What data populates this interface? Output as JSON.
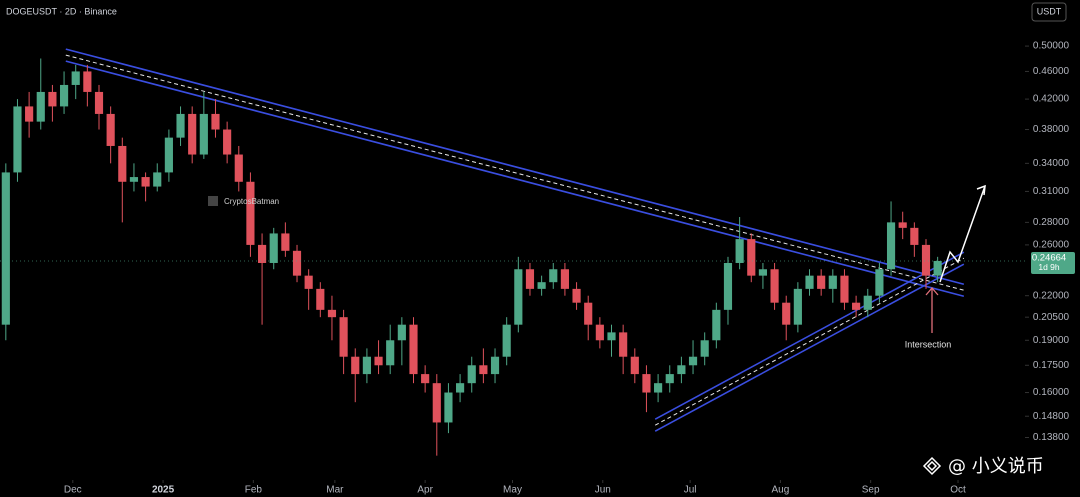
{
  "header": {
    "symbol": "DOGEUSDT · 2D · Binance",
    "currency": "USDT"
  },
  "watermark": "@ 小义说币",
  "chart_data": {
    "type": "candlestick",
    "y_scale": "log",
    "grid": false,
    "colors": {
      "up": "#4fa888",
      "down": "#e0525c"
    },
    "x": [
      -7,
      -3,
      1,
      5,
      9,
      13,
      17,
      21,
      25,
      29,
      33,
      37,
      41,
      45,
      49,
      53,
      57,
      61,
      65,
      69,
      73,
      77,
      81,
      85,
      89,
      93,
      97,
      101,
      105,
      109,
      113,
      117,
      121,
      125,
      129,
      133,
      137,
      141,
      145,
      149,
      153,
      157,
      161,
      165,
      169,
      173,
      177,
      181,
      185,
      189,
      193,
      197,
      201,
      205,
      209,
      213,
      217,
      221,
      225,
      229,
      233,
      237,
      241,
      245,
      249,
      253,
      257,
      261,
      265,
      269,
      273,
      277,
      281,
      285,
      289,
      293,
      297,
      301,
      305,
      309,
      313
    ],
    "open": [
      0.2,
      0.33,
      0.41,
      0.39,
      0.43,
      0.41,
      0.44,
      0.46,
      0.43,
      0.4,
      0.36,
      0.32,
      0.325,
      0.315,
      0.33,
      0.37,
      0.4,
      0.35,
      0.4,
      0.38,
      0.35,
      0.32,
      0.26,
      0.245,
      0.27,
      0.255,
      0.235,
      0.225,
      0.21,
      0.205,
      0.18,
      0.17,
      0.18,
      0.175,
      0.19,
      0.2,
      0.17,
      0.165,
      0.145,
      0.16,
      0.165,
      0.175,
      0.17,
      0.18,
      0.2,
      0.24,
      0.225,
      0.23,
      0.24,
      0.225,
      0.215,
      0.2,
      0.19,
      0.195,
      0.18,
      0.17,
      0.16,
      0.165,
      0.17,
      0.175,
      0.18,
      0.19,
      0.21,
      0.245,
      0.265,
      0.235,
      0.24,
      0.215,
      0.2,
      0.225,
      0.235,
      0.225,
      0.235,
      0.215,
      0.21,
      0.22,
      0.24,
      0.28,
      0.275,
      0.26,
      0.235
    ],
    "high": [
      0.34,
      0.42,
      0.43,
      0.48,
      0.44,
      0.46,
      0.47,
      0.47,
      0.44,
      0.41,
      0.37,
      0.34,
      0.33,
      0.34,
      0.38,
      0.41,
      0.41,
      0.43,
      0.42,
      0.39,
      0.36,
      0.33,
      0.27,
      0.275,
      0.28,
      0.26,
      0.24,
      0.23,
      0.22,
      0.21,
      0.185,
      0.185,
      0.19,
      0.2,
      0.205,
      0.205,
      0.175,
      0.17,
      0.165,
      0.17,
      0.18,
      0.185,
      0.185,
      0.205,
      0.25,
      0.245,
      0.235,
      0.245,
      0.245,
      0.23,
      0.22,
      0.205,
      0.2,
      0.2,
      0.185,
      0.175,
      0.17,
      0.175,
      0.18,
      0.19,
      0.195,
      0.215,
      0.25,
      0.285,
      0.27,
      0.245,
      0.245,
      0.22,
      0.23,
      0.24,
      0.24,
      0.24,
      0.24,
      0.22,
      0.225,
      0.245,
      0.3,
      0.29,
      0.28,
      0.265,
      0.25
    ],
    "low": [
      0.19,
      0.32,
      0.37,
      0.38,
      0.39,
      0.4,
      0.42,
      0.41,
      0.38,
      0.34,
      0.28,
      0.31,
      0.3,
      0.31,
      0.32,
      0.36,
      0.34,
      0.345,
      0.37,
      0.34,
      0.31,
      0.25,
      0.2,
      0.24,
      0.25,
      0.23,
      0.21,
      0.205,
      0.19,
      0.17,
      0.155,
      0.165,
      0.17,
      0.17,
      0.175,
      0.165,
      0.16,
      0.13,
      0.14,
      0.155,
      0.16,
      0.165,
      0.165,
      0.175,
      0.195,
      0.22,
      0.22,
      0.225,
      0.22,
      0.21,
      0.19,
      0.185,
      0.18,
      0.17,
      0.165,
      0.15,
      0.155,
      0.16,
      0.165,
      0.17,
      0.175,
      0.185,
      0.2,
      0.24,
      0.23,
      0.225,
      0.21,
      0.19,
      0.195,
      0.22,
      0.22,
      0.215,
      0.21,
      0.205,
      0.205,
      0.215,
      0.235,
      0.265,
      0.25,
      0.225,
      0.23
    ],
    "close": [
      0.33,
      0.41,
      0.39,
      0.43,
      0.41,
      0.44,
      0.46,
      0.43,
      0.4,
      0.36,
      0.32,
      0.325,
      0.315,
      0.33,
      0.37,
      0.4,
      0.35,
      0.4,
      0.38,
      0.35,
      0.32,
      0.26,
      0.245,
      0.27,
      0.255,
      0.235,
      0.225,
      0.21,
      0.205,
      0.18,
      0.17,
      0.18,
      0.175,
      0.19,
      0.2,
      0.17,
      0.165,
      0.145,
      0.16,
      0.165,
      0.175,
      0.17,
      0.18,
      0.2,
      0.24,
      0.225,
      0.23,
      0.24,
      0.225,
      0.215,
      0.2,
      0.19,
      0.195,
      0.18,
      0.17,
      0.16,
      0.165,
      0.17,
      0.175,
      0.18,
      0.19,
      0.21,
      0.245,
      0.265,
      0.235,
      0.24,
      0.215,
      0.2,
      0.225,
      0.235,
      0.225,
      0.235,
      0.215,
      0.21,
      0.22,
      0.24,
      0.28,
      0.275,
      0.26,
      0.235,
      0.24664
    ],
    "last_price_countdown": "1d 9h",
    "xlim": [
      -9,
      343
    ],
    "xticks": [
      {
        "value": 16,
        "label": "Dec"
      },
      {
        "value": 47,
        "label": "2025"
      },
      {
        "value": 78,
        "label": "Feb"
      },
      {
        "value": 106,
        "label": "Mar"
      },
      {
        "value": 137,
        "label": "Apr"
      },
      {
        "value": 167,
        "label": "May"
      },
      {
        "value": 198,
        "label": "Jun"
      },
      {
        "value": 228,
        "label": "Jul"
      },
      {
        "value": 259,
        "label": "Aug"
      },
      {
        "value": 290,
        "label": "Sep"
      },
      {
        "value": 320,
        "label": "Oct"
      }
    ],
    "ylim": [
      0.12,
      0.563
    ],
    "yticks": [
      {
        "value": 0.5,
        "label": "0.50000"
      },
      {
        "value": 0.46,
        "label": "0.46000"
      },
      {
        "value": 0.42,
        "label": "0.42000"
      },
      {
        "value": 0.38,
        "label": "0.38000"
      },
      {
        "value": 0.34,
        "label": "0.34000"
      },
      {
        "value": 0.31,
        "label": "0.31000"
      },
      {
        "value": 0.28,
        "label": "0.28000"
      },
      {
        "value": 0.26,
        "label": "0.26000"
      },
      {
        "value": 0.22,
        "label": "0.22000"
      },
      {
        "value": 0.205,
        "label": "0.20500"
      },
      {
        "value": 0.19,
        "label": "0.19000"
      },
      {
        "value": 0.175,
        "label": "0.17500"
      },
      {
        "value": 0.16,
        "label": "0.16000"
      },
      {
        "value": 0.148,
        "label": "0.14800"
      },
      {
        "value": 0.138,
        "label": "0.13800"
      }
    ],
    "trendlines": [
      {
        "x": [
          13.6,
          322
        ],
        "y": [
          0.4854,
          0.224
        ],
        "color": "#3a4ee0"
      },
      {
        "x": [
          216,
          322
        ],
        "y": [
          0.1437,
          0.2489
        ],
        "color": "#3a4ee0"
      }
    ],
    "annotations": [
      {
        "text": "Intersection"
      },
      {
        "text": "CryptosBatman"
      }
    ]
  }
}
